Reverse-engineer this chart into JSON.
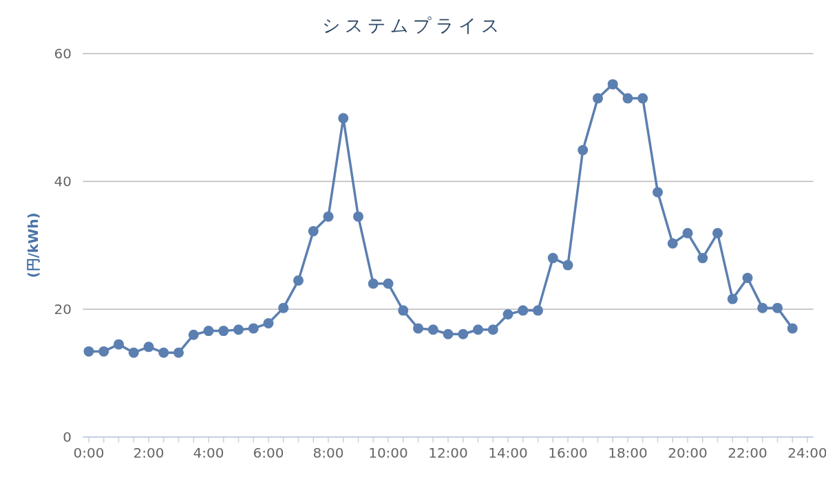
{
  "chart_data": {
    "type": "line",
    "title": "システムプライス",
    "ylabel": "(円/kWh)",
    "x": [
      0,
      0.5,
      1,
      1.5,
      2,
      2.5,
      3,
      3.5,
      4,
      4.5,
      5,
      5.5,
      6,
      6.5,
      7,
      7.5,
      8,
      8.5,
      9,
      9.5,
      10,
      10.5,
      11,
      11.5,
      12,
      12.5,
      13,
      13.5,
      14,
      14.5,
      15,
      15.5,
      16,
      16.5,
      17,
      17.5,
      18,
      18.5,
      19,
      19.5,
      20,
      20.5,
      21,
      21.5,
      22,
      22.5,
      23,
      23.5
    ],
    "series": [
      {
        "color": "#5b7fb0",
        "values": [
          13.4,
          13.4,
          14.5,
          13.2,
          14.1,
          13.2,
          13.2,
          16.0,
          16.6,
          16.6,
          16.8,
          17.0,
          17.8,
          20.2,
          24.5,
          32.2,
          34.5,
          49.9,
          34.5,
          24.0,
          24.0,
          19.8,
          17.0,
          16.8,
          16.1,
          16.1,
          16.8,
          16.8,
          19.2,
          19.8,
          19.8,
          28.0,
          26.9,
          44.9,
          53.0,
          55.2,
          53.0,
          53.0,
          38.3,
          30.3,
          31.9,
          28.0,
          31.9,
          21.6,
          24.9,
          20.2,
          20.2,
          17.0
        ]
      }
    ],
    "xlim": [
      -0.2,
      24.2
    ],
    "ylim": [
      0,
      60
    ],
    "yticks": [
      0,
      20,
      40,
      60
    ],
    "xticks": [
      {
        "value": 0,
        "label": "0:00"
      },
      {
        "value": 0.5,
        "label": null
      },
      {
        "value": 1,
        "label": null
      },
      {
        "value": 1.5,
        "label": null
      },
      {
        "value": 2,
        "label": "2:00"
      },
      {
        "value": 2.5,
        "label": null
      },
      {
        "value": 3,
        "label": null
      },
      {
        "value": 3.5,
        "label": null
      },
      {
        "value": 4,
        "label": "4:00"
      },
      {
        "value": 4.5,
        "label": null
      },
      {
        "value": 5,
        "label": null
      },
      {
        "value": 5.5,
        "label": null
      },
      {
        "value": 6,
        "label": "6:00"
      },
      {
        "value": 6.5,
        "label": null
      },
      {
        "value": 7,
        "label": null
      },
      {
        "value": 7.5,
        "label": null
      },
      {
        "value": 8,
        "label": "8:00"
      },
      {
        "value": 8.5,
        "label": null
      },
      {
        "value": 9,
        "label": null
      },
      {
        "value": 9.5,
        "label": null
      },
      {
        "value": 10,
        "label": "10:00"
      },
      {
        "value": 10.5,
        "label": null
      },
      {
        "value": 11,
        "label": null
      },
      {
        "value": 11.5,
        "label": null
      },
      {
        "value": 12,
        "label": "12:00"
      },
      {
        "value": 12.5,
        "label": null
      },
      {
        "value": 13,
        "label": null
      },
      {
        "value": 13.5,
        "label": null
      },
      {
        "value": 14,
        "label": "14:00"
      },
      {
        "value": 14.5,
        "label": null
      },
      {
        "value": 15,
        "label": null
      },
      {
        "value": 15.5,
        "label": null
      },
      {
        "value": 16,
        "label": "16:00"
      },
      {
        "value": 16.5,
        "label": null
      },
      {
        "value": 17,
        "label": null
      },
      {
        "value": 17.5,
        "label": null
      },
      {
        "value": 18,
        "label": "18:00"
      },
      {
        "value": 18.5,
        "label": null
      },
      {
        "value": 19,
        "label": null
      },
      {
        "value": 19.5,
        "label": null
      },
      {
        "value": 20,
        "label": "20:00"
      },
      {
        "value": 20.5,
        "label": null
      },
      {
        "value": 21,
        "label": null
      },
      {
        "value": 21.5,
        "label": null
      },
      {
        "value": 22,
        "label": "22:00"
      },
      {
        "value": 22.5,
        "label": null
      },
      {
        "value": 23,
        "label": null
      },
      {
        "value": 23.5,
        "label": null
      },
      {
        "value": 24,
        "label": "24:00"
      }
    ],
    "grid": "y",
    "marker": "circle",
    "line_style": "solid"
  }
}
